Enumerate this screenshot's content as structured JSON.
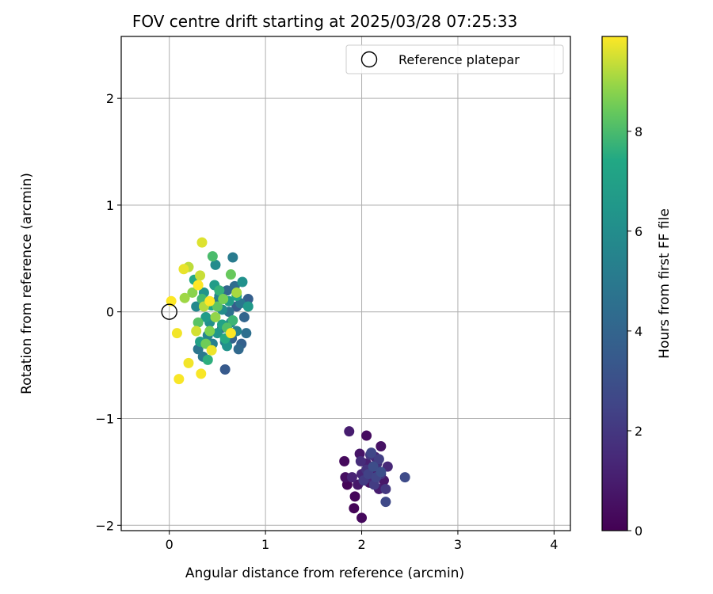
{
  "chart_data": {
    "type": "scatter",
    "title": "FOV centre drift starting at 2025/03/28 07:25:33",
    "xlabel": "Angular distance from reference (arcmin)",
    "ylabel": "Rotation from reference (arcmin)",
    "xlim": [
      -0.5,
      4.17
    ],
    "ylim": [
      -2.05,
      2.58
    ],
    "x_ticks": [
      0,
      1,
      2,
      3,
      4
    ],
    "y_ticks": [
      -2,
      -1,
      0,
      1,
      2
    ],
    "x_tick_labels": [
      "0",
      "1",
      "2",
      "3",
      "4"
    ],
    "y_tick_labels": [
      "−2",
      "−1",
      "0",
      "1",
      "2"
    ],
    "grid": true,
    "legend": {
      "position": "top-right",
      "entries": [
        "Reference platepar"
      ]
    },
    "reference_point": {
      "x": 0,
      "y": 0,
      "label": "Reference platepar"
    },
    "colorbar": {
      "label": "Hours from first FF file",
      "range": [
        0,
        9.9
      ],
      "ticks": [
        0,
        2,
        4,
        6,
        8
      ],
      "colormap": "viridis"
    },
    "points": [
      {
        "x": 1.85,
        "y": -1.62,
        "h": 0.1
      },
      {
        "x": 1.92,
        "y": -1.84,
        "h": 0.1
      },
      {
        "x": 1.93,
        "y": -1.73,
        "h": 0.2
      },
      {
        "x": 2.0,
        "y": -1.93,
        "h": 0.3
      },
      {
        "x": 1.82,
        "y": -1.4,
        "h": 0.3
      },
      {
        "x": 2.05,
        "y": -1.16,
        "h": 0.4
      },
      {
        "x": 1.83,
        "y": -1.55,
        "h": 0.5
      },
      {
        "x": 2.2,
        "y": -1.26,
        "h": 0.6
      },
      {
        "x": 2.08,
        "y": -1.6,
        "h": 0.6
      },
      {
        "x": 1.98,
        "y": -1.33,
        "h": 0.7
      },
      {
        "x": 2.23,
        "y": -1.58,
        "h": 0.8
      },
      {
        "x": 1.96,
        "y": -1.62,
        "h": 0.8
      },
      {
        "x": 2.12,
        "y": -1.48,
        "h": 0.9
      },
      {
        "x": 1.87,
        "y": -1.12,
        "h": 1.0
      },
      {
        "x": 2.18,
        "y": -1.66,
        "h": 1.0
      },
      {
        "x": 2.05,
        "y": -1.42,
        "h": 1.1
      },
      {
        "x": 1.9,
        "y": -1.55,
        "h": 1.2
      },
      {
        "x": 2.14,
        "y": -1.36,
        "h": 1.2
      },
      {
        "x": 2.0,
        "y": -1.52,
        "h": 1.3
      },
      {
        "x": 2.27,
        "y": -1.45,
        "h": 1.4
      },
      {
        "x": 2.1,
        "y": -1.56,
        "h": 1.5
      },
      {
        "x": 1.99,
        "y": -1.4,
        "h": 1.6
      },
      {
        "x": 2.16,
        "y": -1.42,
        "h": 1.7
      },
      {
        "x": 2.05,
        "y": -1.48,
        "h": 1.8
      },
      {
        "x": 2.2,
        "y": -1.52,
        "h": 1.9
      },
      {
        "x": 2.09,
        "y": -1.34,
        "h": 2.0
      },
      {
        "x": 2.25,
        "y": -1.66,
        "h": 2.0
      },
      {
        "x": 2.02,
        "y": -1.58,
        "h": 2.1
      },
      {
        "x": 2.13,
        "y": -1.62,
        "h": 2.2
      },
      {
        "x": 2.18,
        "y": -1.38,
        "h": 2.3
      },
      {
        "x": 2.07,
        "y": -1.52,
        "h": 2.4
      },
      {
        "x": 2.15,
        "y": -1.55,
        "h": 2.5
      },
      {
        "x": 2.1,
        "y": -1.32,
        "h": 2.6
      },
      {
        "x": 2.25,
        "y": -1.78,
        "h": 2.7
      },
      {
        "x": 2.45,
        "y": -1.55,
        "h": 2.8
      },
      {
        "x": 2.12,
        "y": -1.45,
        "h": 2.9
      },
      {
        "x": 2.2,
        "y": -1.5,
        "h": 3.0
      },
      {
        "x": 0.58,
        "y": -0.54,
        "h": 3.5
      },
      {
        "x": 0.7,
        "y": 0.05,
        "h": 3.6
      },
      {
        "x": 0.82,
        "y": 0.12,
        "h": 3.7
      },
      {
        "x": 0.75,
        "y": -0.3,
        "h": 3.8
      },
      {
        "x": 0.65,
        "y": -0.25,
        "h": 3.9
      },
      {
        "x": 0.78,
        "y": -0.05,
        "h": 4.0
      },
      {
        "x": 0.6,
        "y": 0.2,
        "h": 4.1
      },
      {
        "x": 0.72,
        "y": -0.35,
        "h": 4.2
      },
      {
        "x": 0.55,
        "y": -0.15,
        "h": 4.3
      },
      {
        "x": 0.68,
        "y": 0.24,
        "h": 4.4
      },
      {
        "x": 0.8,
        "y": -0.2,
        "h": 4.5
      },
      {
        "x": 0.62,
        "y": 0.0,
        "h": 4.6
      },
      {
        "x": 0.5,
        "y": 0.1,
        "h": 4.7
      },
      {
        "x": 0.3,
        "y": -0.35,
        "h": 4.8
      },
      {
        "x": 0.74,
        "y": 0.08,
        "h": 4.9
      },
      {
        "x": 0.35,
        "y": -0.42,
        "h": 5.0
      },
      {
        "x": 0.66,
        "y": 0.51,
        "h": 5.1
      },
      {
        "x": 0.58,
        "y": -0.28,
        "h": 5.2
      },
      {
        "x": 0.45,
        "y": -0.3,
        "h": 5.3
      },
      {
        "x": 0.7,
        "y": -0.18,
        "h": 5.4
      },
      {
        "x": 0.52,
        "y": 0.15,
        "h": 5.5
      },
      {
        "x": 0.4,
        "y": -0.22,
        "h": 5.6
      },
      {
        "x": 0.64,
        "y": -0.1,
        "h": 5.7
      },
      {
        "x": 0.28,
        "y": 0.05,
        "h": 5.8
      },
      {
        "x": 0.48,
        "y": 0.44,
        "h": 5.9
      },
      {
        "x": 0.55,
        "y": 0.02,
        "h": 6.0
      },
      {
        "x": 0.42,
        "y": -0.1,
        "h": 6.1
      },
      {
        "x": 0.76,
        "y": 0.28,
        "h": 6.2
      },
      {
        "x": 0.6,
        "y": -0.32,
        "h": 6.3
      },
      {
        "x": 0.36,
        "y": 0.18,
        "h": 6.4
      },
      {
        "x": 0.5,
        "y": -0.2,
        "h": 6.5
      },
      {
        "x": 0.82,
        "y": 0.05,
        "h": 6.6
      },
      {
        "x": 0.38,
        "y": -0.05,
        "h": 6.7
      },
      {
        "x": 0.47,
        "y": 0.25,
        "h": 6.8
      },
      {
        "x": 0.62,
        "y": 0.1,
        "h": 6.9
      },
      {
        "x": 0.32,
        "y": -0.28,
        "h": 7.0
      },
      {
        "x": 0.55,
        "y": -0.12,
        "h": 7.1
      },
      {
        "x": 0.7,
        "y": 0.15,
        "h": 7.2
      },
      {
        "x": 0.44,
        "y": 0.06,
        "h": 7.3
      },
      {
        "x": 0.26,
        "y": 0.3,
        "h": 7.4
      },
      {
        "x": 0.58,
        "y": -0.25,
        "h": 7.5
      },
      {
        "x": 0.4,
        "y": -0.45,
        "h": 7.6
      },
      {
        "x": 0.52,
        "y": 0.2,
        "h": 7.7
      },
      {
        "x": 0.66,
        "y": -0.08,
        "h": 7.8
      },
      {
        "x": 0.34,
        "y": 0.12,
        "h": 7.9
      },
      {
        "x": 0.45,
        "y": 0.52,
        "h": 8.0
      },
      {
        "x": 0.6,
        "y": -0.15,
        "h": 8.1
      },
      {
        "x": 0.3,
        "y": -0.1,
        "h": 8.2
      },
      {
        "x": 0.5,
        "y": 0.05,
        "h": 8.3
      },
      {
        "x": 0.64,
        "y": 0.35,
        "h": 8.4
      },
      {
        "x": 0.38,
        "y": -0.3,
        "h": 8.5
      },
      {
        "x": 0.56,
        "y": 0.12,
        "h": 8.6
      },
      {
        "x": 0.42,
        "y": -0.18,
        "h": 8.7
      },
      {
        "x": 0.24,
        "y": 0.18,
        "h": 8.8
      },
      {
        "x": 0.48,
        "y": -0.05,
        "h": 8.9
      },
      {
        "x": 0.16,
        "y": 0.13,
        "h": 9.0
      },
      {
        "x": 0.7,
        "y": 0.18,
        "h": 9.1
      },
      {
        "x": 0.36,
        "y": 0.05,
        "h": 9.2
      },
      {
        "x": 0.2,
        "y": 0.42,
        "h": 9.3
      },
      {
        "x": 0.32,
        "y": 0.34,
        "h": 9.4
      },
      {
        "x": 0.28,
        "y": -0.18,
        "h": 9.5
      },
      {
        "x": 0.34,
        "y": 0.65,
        "h": 9.6
      },
      {
        "x": 0.15,
        "y": 0.4,
        "h": 9.7
      },
      {
        "x": 0.44,
        "y": -0.36,
        "h": 9.75
      },
      {
        "x": 0.08,
        "y": -0.2,
        "h": 9.8
      },
      {
        "x": 0.2,
        "y": -0.48,
        "h": 9.8
      },
      {
        "x": 0.1,
        "y": -0.63,
        "h": 9.85
      },
      {
        "x": 0.33,
        "y": -0.58,
        "h": 9.85
      },
      {
        "x": 0.02,
        "y": 0.1,
        "h": 9.9
      },
      {
        "x": 0.42,
        "y": 0.1,
        "h": 9.9
      },
      {
        "x": 0.64,
        "y": -0.2,
        "h": 9.9
      },
      {
        "x": 0.3,
        "y": 0.25,
        "h": 9.9
      }
    ]
  }
}
